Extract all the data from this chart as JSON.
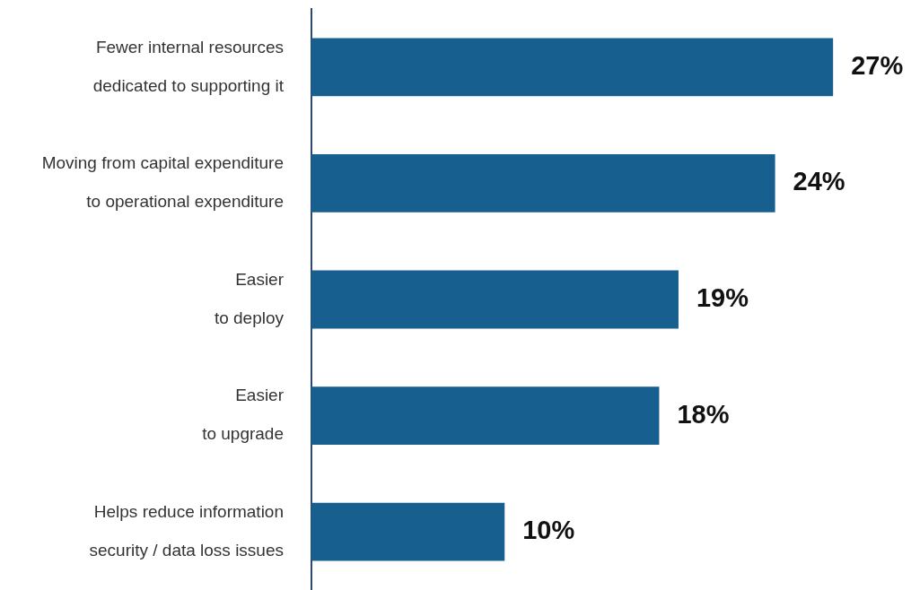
{
  "chart_data": {
    "type": "bar",
    "orientation": "horizontal",
    "categories": [
      "Fewer internal resources\ndedicated to supporting it",
      "Moving from capital expenditure\nto operational expenditure",
      "Easier\nto deploy",
      "Easier\nto upgrade",
      "Helps reduce information\nsecurity / data loss issues"
    ],
    "values": [
      27,
      24,
      19,
      18,
      10
    ],
    "value_labels": [
      "27%",
      "24%",
      "19%",
      "18%",
      "10%"
    ],
    "color": "#175f8e",
    "legend": false
  }
}
